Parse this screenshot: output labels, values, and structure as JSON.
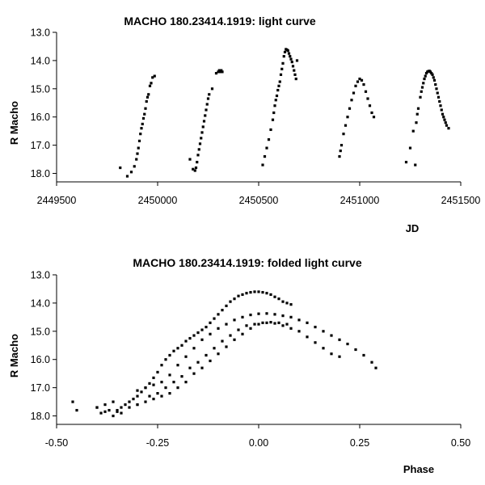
{
  "chart_data": [
    {
      "type": "scatter",
      "title": "MACHO 180.23414.1919: light curve",
      "xlabel": "JD",
      "ylabel": "R Macho",
      "xlim": [
        2449500,
        2451500
      ],
      "ylim": [
        18.3,
        13.0
      ],
      "y_inverted": true,
      "xticks": [
        2449500,
        2450000,
        2450500,
        2451000,
        2451500
      ],
      "xtick_labels": [
        "2449500",
        "2450000",
        "2450500",
        "2451000",
        "2451500"
      ],
      "yticks": [
        13.0,
        14.0,
        15.0,
        16.0,
        17.0,
        18.0
      ],
      "ytick_labels": [
        "13.0",
        "14.0",
        "15.0",
        "16.0",
        "17.0",
        "18.0"
      ],
      "grid": false,
      "series": [
        {
          "name": "R Macho",
          "x": [
            2449815,
            2449850,
            2449870,
            2449885,
            2449895,
            2449900,
            2449905,
            2449910,
            2449915,
            2449920,
            2449925,
            2449930,
            2449935,
            2449940,
            2449945,
            2449950,
            2449955,
            2449962,
            2449968,
            2449975,
            2449985,
            2450160,
            2450175,
            2450185,
            2450190,
            2450195,
            2450200,
            2450205,
            2450210,
            2450215,
            2450220,
            2450225,
            2450230,
            2450235,
            2450240,
            2450245,
            2450250,
            2450255,
            2450270,
            2450290,
            2450300,
            2450305,
            2450310,
            2450315,
            2450320,
            2450520,
            2450530,
            2450540,
            2450550,
            2450560,
            2450570,
            2450575,
            2450580,
            2450585,
            2450590,
            2450595,
            2450600,
            2450605,
            2450610,
            2450615,
            2450620,
            2450625,
            2450630,
            2450635,
            2450640,
            2450645,
            2450650,
            2450655,
            2450660,
            2450665,
            2450670,
            2450675,
            2450680,
            2450685,
            2450690,
            2450900,
            2450905,
            2450910,
            2450920,
            2450930,
            2450940,
            2450950,
            2450960,
            2450970,
            2450980,
            2450990,
            2451000,
            2451010,
            2451020,
            2451030,
            2451040,
            2451050,
            2451060,
            2451070,
            2451230,
            2451250,
            2451265,
            2451275,
            2451280,
            2451285,
            2451290,
            2451300,
            2451305,
            2451310,
            2451315,
            2451320,
            2451325,
            2451330,
            2451335,
            2451340,
            2451345,
            2451350,
            2451355,
            2451360,
            2451365,
            2451370,
            2451375,
            2451380,
            2451385,
            2451390,
            2451395,
            2451400,
            2451405,
            2451410,
            2451415,
            2451420,
            2451425,
            2451430,
            2451440
          ],
          "y": [
            17.8,
            18.1,
            17.95,
            17.75,
            17.5,
            17.3,
            17.1,
            16.85,
            16.6,
            16.4,
            16.25,
            16.05,
            15.9,
            15.7,
            15.45,
            15.3,
            15.2,
            14.9,
            14.8,
            14.6,
            14.55,
            17.5,
            17.85,
            17.9,
            17.8,
            17.6,
            17.35,
            17.15,
            16.95,
            16.75,
            16.55,
            16.35,
            16.15,
            15.95,
            15.75,
            15.55,
            15.35,
            15.2,
            15.0,
            14.45,
            14.4,
            14.35,
            14.4,
            14.35,
            14.4,
            17.7,
            17.4,
            17.1,
            16.8,
            16.45,
            16.1,
            15.85,
            15.6,
            15.4,
            15.25,
            15.05,
            14.9,
            14.75,
            14.5,
            14.3,
            14.1,
            13.85,
            13.7,
            13.6,
            13.62,
            13.65,
            13.75,
            13.85,
            13.95,
            14.05,
            14.2,
            14.35,
            14.5,
            14.65,
            14.0,
            17.4,
            17.2,
            17.0,
            16.6,
            16.3,
            16.0,
            15.7,
            15.4,
            15.15,
            14.9,
            14.75,
            14.65,
            14.7,
            14.85,
            15.1,
            15.35,
            15.6,
            15.85,
            16.0,
            17.6,
            17.1,
            16.5,
            17.7,
            16.2,
            15.9,
            15.7,
            15.3,
            15.1,
            14.95,
            14.8,
            14.65,
            14.55,
            14.45,
            14.4,
            14.38,
            14.37,
            14.4,
            14.45,
            14.5,
            14.6,
            14.7,
            14.85,
            15.0,
            15.15,
            15.3,
            15.45,
            15.6,
            15.75,
            15.9,
            16.0,
            16.1,
            16.2,
            16.3,
            16.4
          ]
        }
      ]
    },
    {
      "type": "scatter",
      "title": "MACHO 180.23414.1919: folded light curve",
      "xlabel": "Phase",
      "ylabel": "R Macho",
      "xlim": [
        -0.5,
        0.5
      ],
      "ylim": [
        18.3,
        13.0
      ],
      "y_inverted": true,
      "xticks": [
        -0.5,
        -0.25,
        0.0,
        0.25,
        0.5
      ],
      "xtick_labels": [
        "-0.50",
        "-0.25",
        "0.00",
        "0.25",
        "0.50"
      ],
      "yticks": [
        13.0,
        14.0,
        15.0,
        16.0,
        17.0,
        18.0
      ],
      "ytick_labels": [
        "13.0",
        "14.0",
        "15.0",
        "16.0",
        "17.0",
        "18.0"
      ],
      "grid": false,
      "series": [
        {
          "name": "R Macho",
          "x": [
            -0.46,
            -0.45,
            -0.4,
            -0.39,
            -0.38,
            -0.37,
            -0.36,
            -0.35,
            -0.34,
            -0.33,
            -0.32,
            -0.31,
            -0.3,
            -0.29,
            -0.28,
            -0.27,
            -0.26,
            -0.25,
            -0.24,
            -0.23,
            -0.22,
            -0.21,
            -0.2,
            -0.19,
            -0.18,
            -0.17,
            -0.16,
            -0.15,
            -0.14,
            -0.13,
            -0.12,
            -0.11,
            -0.1,
            -0.09,
            -0.08,
            -0.07,
            -0.06,
            -0.05,
            -0.04,
            -0.03,
            -0.02,
            -0.01,
            0.0,
            0.01,
            0.02,
            0.03,
            0.04,
            0.05,
            0.06,
            0.07,
            0.08,
            -0.35,
            -0.3,
            -0.27,
            -0.25,
            -0.23,
            -0.21,
            -0.19,
            -0.17,
            -0.15,
            -0.13,
            -0.11,
            -0.09,
            -0.07,
            -0.05,
            -0.03,
            -0.01,
            0.01,
            0.03,
            0.05,
            0.07,
            -0.3,
            -0.28,
            -0.26,
            -0.24,
            -0.22,
            -0.2,
            -0.18,
            -0.16,
            -0.14,
            -0.12,
            -0.1,
            -0.08,
            -0.06,
            -0.04,
            -0.02,
            0.0,
            0.02,
            0.04,
            0.06,
            0.08,
            0.1,
            0.12,
            0.14,
            0.16,
            0.18,
            0.2,
            0.22,
            0.24,
            0.26,
            0.28,
            0.29,
            -0.4,
            -0.38,
            -0.36,
            -0.34,
            -0.32,
            -0.3,
            -0.28,
            -0.26,
            -0.24,
            -0.22,
            -0.2,
            -0.18,
            -0.16,
            -0.14,
            -0.12,
            -0.1,
            -0.08,
            -0.06,
            -0.04,
            -0.02,
            0.0,
            0.02,
            0.04,
            0.06,
            0.08,
            0.1,
            0.12,
            0.14,
            0.16,
            0.18,
            0.2
          ],
          "y": [
            17.5,
            17.8,
            17.7,
            17.9,
            17.6,
            17.8,
            17.5,
            17.85,
            17.7,
            17.6,
            17.5,
            17.4,
            17.3,
            17.15,
            17.0,
            16.85,
            16.65,
            16.45,
            16.2,
            16.0,
            15.85,
            15.7,
            15.6,
            15.5,
            15.35,
            15.25,
            15.15,
            15.05,
            14.95,
            14.85,
            14.7,
            14.55,
            14.4,
            14.25,
            14.1,
            13.95,
            13.85,
            13.75,
            13.7,
            13.65,
            13.62,
            13.6,
            13.6,
            13.62,
            13.65,
            13.7,
            13.78,
            13.85,
            13.95,
            14.0,
            14.05,
            17.8,
            17.6,
            17.3,
            17.2,
            17.0,
            16.8,
            16.6,
            16.3,
            16.1,
            15.85,
            15.6,
            15.35,
            15.15,
            14.95,
            14.8,
            14.75,
            14.7,
            14.68,
            14.7,
            14.75,
            17.1,
            17.0,
            16.9,
            16.8,
            16.55,
            16.2,
            15.9,
            15.6,
            15.3,
            15.1,
            14.9,
            14.75,
            14.6,
            14.5,
            14.42,
            14.38,
            14.37,
            14.4,
            14.45,
            14.5,
            14.6,
            14.7,
            14.85,
            15.0,
            15.15,
            15.3,
            15.45,
            15.65,
            15.85,
            16.1,
            16.3,
            17.7,
            17.85,
            18.0,
            17.9,
            17.7,
            17.6,
            17.5,
            17.4,
            17.3,
            17.2,
            17.0,
            16.8,
            16.5,
            16.3,
            16.05,
            15.8,
            15.55,
            15.3,
            15.1,
            14.9,
            14.75,
            14.7,
            14.72,
            14.8,
            14.9,
            15.0,
            15.2,
            15.4,
            15.6,
            15.8,
            15.9
          ]
        }
      ]
    }
  ]
}
